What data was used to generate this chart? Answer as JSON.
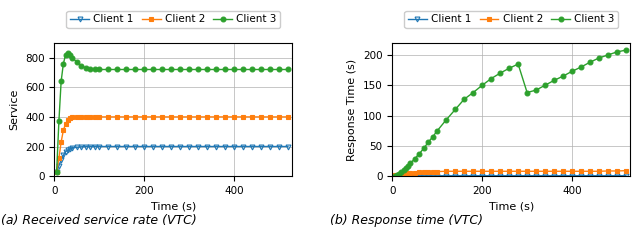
{
  "left": {
    "ylabel": "Service",
    "xlabel": "Time (s)",
    "clients": [
      "Client 1",
      "Client 2",
      "Client 3"
    ],
    "colors": [
      "#1f77b4",
      "#ff7f0e",
      "#2ca02c"
    ],
    "markers": [
      "v",
      "s",
      "o"
    ],
    "ylim": [
      0.0,
      900
    ],
    "xlim": [
      0,
      530
    ],
    "yticks": [
      0.0,
      200.0,
      400.0,
      600.0,
      800.0
    ],
    "xticks": [
      0,
      200,
      400
    ],
    "client1_x": [
      5,
      10,
      15,
      20,
      25,
      30,
      35,
      40,
      50,
      60,
      70,
      80,
      90,
      100,
      120,
      140,
      160,
      180,
      200,
      220,
      240,
      260,
      280,
      300,
      320,
      340,
      360,
      380,
      400,
      420,
      440,
      460,
      480,
      500,
      520
    ],
    "client1_y": [
      30,
      70,
      110,
      140,
      165,
      175,
      185,
      190,
      195,
      198,
      200,
      200,
      200,
      200,
      200,
      200,
      200,
      200,
      200,
      200,
      200,
      200,
      200,
      200,
      200,
      200,
      200,
      200,
      200,
      200,
      200,
      200,
      200,
      200,
      200
    ],
    "client2_x": [
      5,
      10,
      15,
      20,
      25,
      30,
      35,
      40,
      50,
      60,
      70,
      80,
      90,
      100,
      120,
      140,
      160,
      180,
      200,
      220,
      240,
      260,
      280,
      300,
      320,
      340,
      360,
      380,
      400,
      420,
      440,
      460,
      480,
      500,
      520
    ],
    "client2_y": [
      30,
      120,
      230,
      310,
      355,
      378,
      390,
      396,
      398,
      399,
      400,
      400,
      400,
      400,
      400,
      400,
      400,
      400,
      400,
      400,
      400,
      400,
      400,
      400,
      400,
      400,
      400,
      400,
      400,
      400,
      400,
      400,
      400,
      400,
      400
    ],
    "client3_x": [
      5,
      10,
      15,
      20,
      25,
      30,
      35,
      40,
      50,
      60,
      70,
      80,
      90,
      100,
      120,
      140,
      160,
      180,
      200,
      220,
      240,
      260,
      280,
      300,
      320,
      340,
      360,
      380,
      400,
      420,
      440,
      460,
      480,
      500,
      520
    ],
    "client3_y": [
      30,
      370,
      640,
      760,
      820,
      830,
      820,
      800,
      770,
      745,
      730,
      722,
      720,
      720,
      720,
      720,
      720,
      720,
      720,
      720,
      720,
      720,
      720,
      720,
      720,
      720,
      720,
      720,
      720,
      720,
      720,
      720,
      720,
      720,
      720
    ]
  },
  "right": {
    "ylabel": "Response Time (s)",
    "xlabel": "Time (s)",
    "clients": [
      "Client 1",
      "Client 2",
      "Client 3"
    ],
    "colors": [
      "#1f77b4",
      "#ff7f0e",
      "#2ca02c"
    ],
    "markers": [
      "v",
      "s",
      "o"
    ],
    "ylim": [
      0.0,
      220
    ],
    "xlim": [
      0,
      530
    ],
    "yticks": [
      0.0,
      50.0,
      100.0,
      150.0,
      200.0
    ],
    "xticks": [
      0,
      200,
      400
    ],
    "client1_x": [
      5,
      10,
      15,
      20,
      25,
      30,
      35,
      40,
      50,
      60,
      70,
      80,
      90,
      100,
      120,
      140,
      160,
      180,
      200,
      220,
      240,
      260,
      280,
      300,
      320,
      340,
      360,
      380,
      400,
      420,
      440,
      460,
      480,
      500,
      520
    ],
    "client1_y": [
      0.3,
      0.4,
      0.5,
      0.5,
      0.5,
      0.5,
      0.6,
      0.6,
      0.6,
      0.6,
      0.6,
      0.6,
      0.6,
      0.6,
      0.6,
      0.6,
      0.6,
      0.6,
      0.6,
      0.6,
      0.6,
      0.6,
      0.6,
      0.6,
      0.6,
      0.6,
      0.6,
      0.6,
      0.6,
      0.6,
      0.6,
      0.6,
      0.6,
      0.6,
      0.6
    ],
    "client2_x": [
      5,
      10,
      15,
      20,
      25,
      30,
      35,
      40,
      50,
      60,
      70,
      80,
      90,
      100,
      120,
      140,
      160,
      180,
      200,
      220,
      240,
      260,
      280,
      300,
      320,
      340,
      360,
      380,
      400,
      420,
      440,
      460,
      480,
      500,
      520
    ],
    "client2_y": [
      1.5,
      2.0,
      2.5,
      3.0,
      3.5,
      4.0,
      4.5,
      5.0,
      5.5,
      6.0,
      6.5,
      7.0,
      7.0,
      7.5,
      8.0,
      8.0,
      8.0,
      8.0,
      8.0,
      8.0,
      8.0,
      8.0,
      8.0,
      8.0,
      8.0,
      8.0,
      8.0,
      8.0,
      8.0,
      8.0,
      8.0,
      8.0,
      8.5,
      8.5,
      9.0
    ],
    "client3_x": [
      5,
      10,
      15,
      20,
      25,
      30,
      35,
      40,
      50,
      60,
      70,
      80,
      90,
      100,
      120,
      140,
      160,
      180,
      200,
      220,
      240,
      260,
      280,
      300,
      320,
      340,
      360,
      380,
      400,
      420,
      440,
      460,
      480,
      500,
      520
    ],
    "client3_y": [
      0.5,
      2,
      4,
      7,
      10,
      13,
      17,
      21,
      29,
      37,
      46,
      56,
      65,
      75,
      93,
      110,
      127,
      138,
      150,
      161,
      170,
      178,
      185,
      138,
      142,
      150,
      158,
      165,
      173,
      180,
      188,
      195,
      200,
      205,
      208
    ]
  },
  "caption_left": "(a) Received service rate (VTC)",
  "caption_right": "(b) Response time (VTC)",
  "background_color": "#ffffff",
  "grid_color": "#b0b0b0"
}
